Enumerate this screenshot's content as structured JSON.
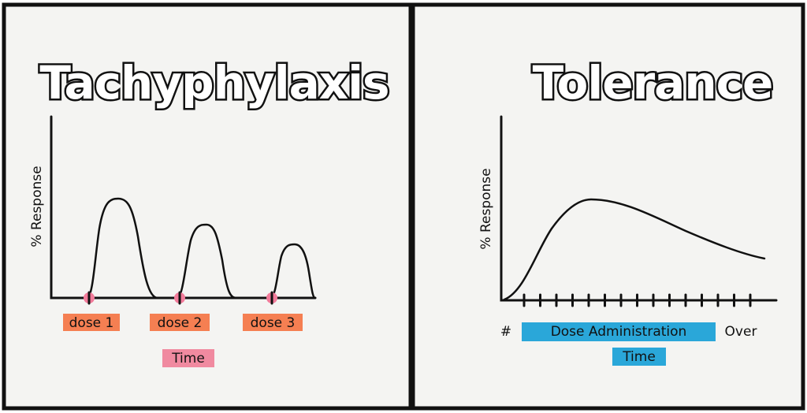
{
  "panels": [
    {
      "title": "Tachyphylaxis",
      "y_label": "% Response",
      "x_labels": [
        "dose 1",
        "dose 2",
        "dose 3"
      ],
      "x_title": "Time"
    },
    {
      "title": "Tolerance",
      "y_label": "% Response",
      "x_title_prefix": "#",
      "x_title_highlight": "Dose Administration",
      "x_title_suffix": "Over",
      "x_title_line2": "Time"
    }
  ]
}
